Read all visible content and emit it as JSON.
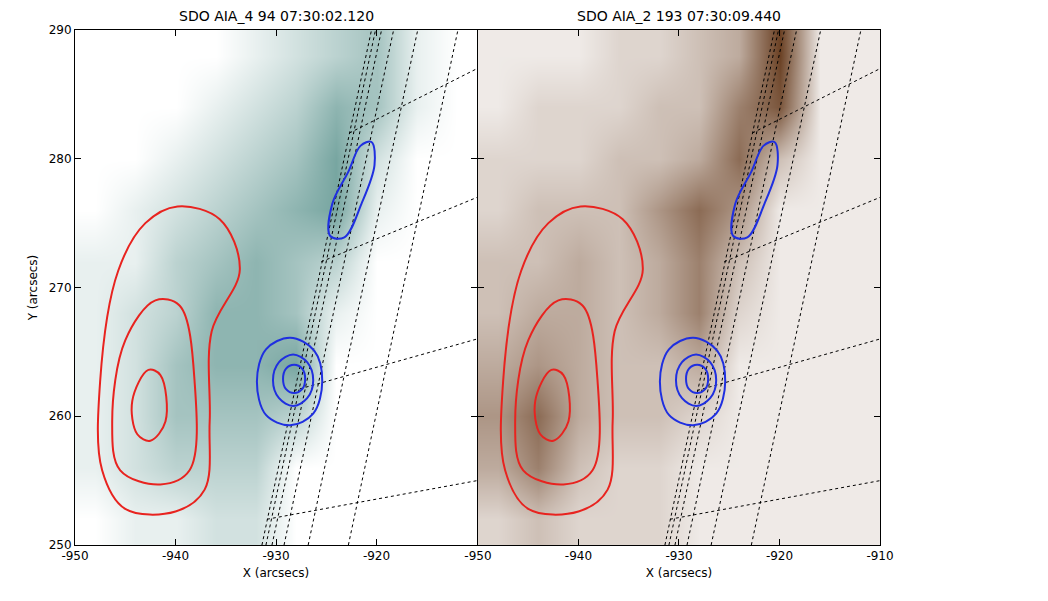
{
  "chart_data": [
    {
      "type": "heatmap",
      "title": "SDO AIA_4 94 07:30:02.120",
      "x_label": "X (arcsecs)",
      "y_label": "Y (arcsecs)",
      "color": "#1d6a62",
      "xlim": [
        -950,
        -910
      ],
      "ylim": [
        250,
        290
      ],
      "xticks": [
        -950,
        -940,
        -930,
        -920
      ],
      "yticks": [
        250,
        260,
        270,
        280,
        290
      ],
      "image": {
        "x": [
          -948,
          -944,
          -940,
          -936,
          -932,
          -928,
          -924,
          -920,
          -916,
          -912
        ],
        "y": [
          252,
          256,
          260,
          264,
          268,
          272,
          276,
          280,
          284,
          288
        ],
        "z": [
          [
            0,
            1,
            1,
            2,
            2,
            0,
            0,
            0,
            0,
            0
          ],
          [
            1,
            2,
            3,
            3,
            3,
            0,
            0,
            0,
            0,
            0
          ],
          [
            1,
            2,
            4,
            4,
            4,
            3,
            0,
            0,
            0,
            0
          ],
          [
            1,
            2,
            4,
            5,
            5,
            6,
            0,
            0,
            0,
            0
          ],
          [
            1,
            2,
            3,
            5,
            5,
            4,
            1,
            0,
            0,
            0
          ],
          [
            1,
            1,
            3,
            4,
            5,
            4,
            3,
            0,
            0,
            0
          ],
          [
            0,
            1,
            2,
            3,
            4,
            5,
            6,
            1,
            0,
            0
          ],
          [
            0,
            0,
            1,
            2,
            3,
            4,
            6,
            2,
            0,
            0
          ],
          [
            0,
            0,
            0,
            1,
            2,
            3,
            5,
            4,
            1,
            0
          ],
          [
            0,
            0,
            0,
            0,
            1,
            2,
            3,
            4,
            1,
            0
          ]
        ],
        "zlim": [
          0,
          10
        ]
      },
      "contours": [
        {
          "color": "#e8231f",
          "x": [
            -939.8,
            -935.6,
            -933.6,
            -936.4,
            -936.6,
            -937.1,
            -940.0,
            -945.0,
            -947.3,
            -947.5,
            -945.7,
            -943.0,
            -939.8
          ],
          "y": [
            276.3,
            275.3,
            271.4,
            266.6,
            259.6,
            254.3,
            252.6,
            252.8,
            255.8,
            262.7,
            271.3,
            275.0,
            276.3
          ]
        },
        {
          "color": "#e8231f",
          "x": [
            -942.0,
            -939.6,
            -938.1,
            -938.6,
            -941.5,
            -945.5,
            -946.3,
            -945.0,
            -942.0
          ],
          "y": [
            269.0,
            268.6,
            262.7,
            255.8,
            254.7,
            255.8,
            259.6,
            265.9,
            269.0
          ]
        },
        {
          "color": "#e8231f",
          "x": [
            -942.7,
            -941.5,
            -941.0,
            -942.5,
            -943.8,
            -944.3,
            -942.7
          ],
          "y": [
            263.6,
            263.2,
            259.6,
            258.1,
            258.6,
            261.2,
            263.6
          ]
        },
        {
          "color": "#1f2fe0",
          "x": [
            -928.6,
            -926.2,
            -925.4,
            -926.3,
            -928.6,
            -931.0,
            -931.9,
            -931.0,
            -928.6
          ],
          "y": [
            266.1,
            265.1,
            262.7,
            260.2,
            259.3,
            260.1,
            262.7,
            265.2,
            266.1
          ]
        },
        {
          "color": "#1f2fe0",
          "x": [
            -928.3,
            -926.9,
            -926.3,
            -926.9,
            -928.3,
            -929.7,
            -930.3,
            -929.7,
            -928.3
          ],
          "y": [
            264.8,
            264.2,
            262.8,
            261.4,
            260.8,
            261.4,
            262.8,
            264.2,
            264.8
          ]
        },
        {
          "color": "#1f2fe0",
          "x": [
            -928.2,
            -927.4,
            -927.1,
            -927.4,
            -928.2,
            -929.0,
            -929.3,
            -929.0,
            -928.2
          ],
          "y": [
            264.0,
            263.7,
            262.9,
            262.1,
            261.8,
            262.1,
            262.9,
            263.7,
            264.0
          ]
        },
        {
          "color": "#1f2fe0",
          "x": [
            -924.6,
            -923.2,
            -921.5,
            -920.2,
            -920.5,
            -921.6,
            -922.8,
            -924.4,
            -924.6
          ],
          "y": [
            274.0,
            273.9,
            276.5,
            279.5,
            281.3,
            281.0,
            279.0,
            276.5,
            274.0
          ]
        }
      ],
      "grid_lines": {
        "line_style": "dotted",
        "color": "#000000",
        "lines": [
          {
            "x": [
              -931.4,
              -920.5
            ],
            "y": [
              250,
              290
            ]
          },
          {
            "x": [
              -931.0,
              -920.1
            ],
            "y": [
              250,
              290
            ]
          },
          {
            "x": [
              -930.4,
              -919.5
            ],
            "y": [
              250,
              290
            ]
          },
          {
            "x": [
              -929.2,
              -918.3
            ],
            "y": [
              250,
              290
            ]
          },
          {
            "x": [
              -926.8,
              -915.9
            ],
            "y": [
              250,
              290
            ]
          },
          {
            "x": [
              -922.8,
              -911.9
            ],
            "y": [
              250,
              290
            ]
          },
          {
            "x": [
              -930.9,
              -910
            ],
            "y": [
              252,
              255
            ]
          },
          {
            "x": [
              -928.2,
              -910
            ],
            "y": [
              262,
              266
            ]
          },
          {
            "x": [
              -925.5,
              -910
            ],
            "y": [
              272,
              277
            ]
          },
          {
            "x": [
              -922.7,
              -910
            ],
            "y": [
              282,
              287
            ]
          }
        ]
      }
    },
    {
      "type": "heatmap",
      "title": "SDO AIA_2 193 07:30:09.440",
      "x_label": "X (arcsecs)",
      "color": "#5a2c0c",
      "xlim": [
        -950,
        -910
      ],
      "ylim": [
        250,
        290
      ],
      "xticks": [
        -950,
        -940,
        -930,
        -920,
        -910
      ],
      "yticks": [
        250,
        260,
        270,
        280,
        290
      ],
      "tick_labels": "x",
      "image": {
        "x": [
          -948,
          -944,
          -940,
          -936,
          -932,
          -928,
          -924,
          -920,
          -916,
          -912
        ],
        "y": [
          252,
          256,
          260,
          264,
          268,
          272,
          276,
          280,
          284,
          288
        ],
        "z": [
          [
            2,
            3,
            2,
            2,
            2,
            1,
            1,
            1,
            1,
            1
          ],
          [
            4,
            6,
            3,
            2,
            2,
            1,
            1,
            1,
            1,
            1
          ],
          [
            5,
            7,
            4,
            3,
            3,
            2,
            1,
            1,
            1,
            1
          ],
          [
            4,
            5,
            4,
            3,
            3,
            4,
            1,
            1,
            1,
            1
          ],
          [
            3,
            4,
            4,
            3,
            4,
            6,
            2,
            1,
            1,
            1
          ],
          [
            3,
            3,
            4,
            3,
            4,
            6,
            3,
            1,
            1,
            1
          ],
          [
            2,
            3,
            3,
            3,
            5,
            7,
            5,
            1,
            1,
            1
          ],
          [
            2,
            2,
            2,
            3,
            3,
            4,
            7,
            3,
            1,
            1
          ],
          [
            1,
            2,
            2,
            2,
            3,
            3,
            6,
            8,
            1,
            1
          ],
          [
            1,
            1,
            1,
            2,
            2,
            3,
            4,
            9,
            1,
            1
          ]
        ],
        "zlim": [
          0,
          10
        ]
      },
      "contours": [
        {
          "color": "#e8231f",
          "x": [
            -939.8,
            -935.6,
            -933.6,
            -936.4,
            -936.6,
            -937.1,
            -940.0,
            -945.0,
            -947.3,
            -947.5,
            -945.7,
            -943.0,
            -939.8
          ],
          "y": [
            276.3,
            275.3,
            271.4,
            266.6,
            259.6,
            254.3,
            252.6,
            252.8,
            255.8,
            262.7,
            271.3,
            275.0,
            276.3
          ]
        },
        {
          "color": "#e8231f",
          "x": [
            -942.0,
            -939.6,
            -938.1,
            -938.6,
            -941.5,
            -945.5,
            -946.3,
            -945.0,
            -942.0
          ],
          "y": [
            269.0,
            268.6,
            262.7,
            255.8,
            254.7,
            255.8,
            259.6,
            265.9,
            269.0
          ]
        },
        {
          "color": "#e8231f",
          "x": [
            -942.7,
            -941.5,
            -941.0,
            -942.5,
            -943.8,
            -944.3,
            -942.7
          ],
          "y": [
            263.6,
            263.2,
            259.6,
            258.1,
            258.6,
            261.2,
            263.6
          ]
        },
        {
          "color": "#1f2fe0",
          "x": [
            -928.6,
            -926.2,
            -925.4,
            -926.3,
            -928.6,
            -931.0,
            -931.9,
            -931.0,
            -928.6
          ],
          "y": [
            266.1,
            265.1,
            262.7,
            260.2,
            259.3,
            260.1,
            262.7,
            265.2,
            266.1
          ]
        },
        {
          "color": "#1f2fe0",
          "x": [
            -928.3,
            -926.9,
            -926.3,
            -926.9,
            -928.3,
            -929.7,
            -930.3,
            -929.7,
            -928.3
          ],
          "y": [
            264.8,
            264.2,
            262.8,
            261.4,
            260.8,
            261.4,
            262.8,
            264.2,
            264.8
          ]
        },
        {
          "color": "#1f2fe0",
          "x": [
            -928.2,
            -927.4,
            -927.1,
            -927.4,
            -928.2,
            -929.0,
            -929.3,
            -929.0,
            -928.2
          ],
          "y": [
            264.0,
            263.7,
            262.9,
            262.1,
            261.8,
            262.1,
            262.9,
            263.7,
            264.0
          ]
        },
        {
          "color": "#1f2fe0",
          "x": [
            -924.6,
            -923.2,
            -921.5,
            -920.2,
            -920.5,
            -921.6,
            -922.8,
            -924.4,
            -924.6
          ],
          "y": [
            274.0,
            273.9,
            276.5,
            279.5,
            281.3,
            281.0,
            279.0,
            276.5,
            274.0
          ]
        }
      ],
      "grid_lines": {
        "line_style": "dotted",
        "color": "#000000",
        "lines": [
          {
            "x": [
              -931.4,
              -920.5
            ],
            "y": [
              250,
              290
            ]
          },
          {
            "x": [
              -931.0,
              -920.1
            ],
            "y": [
              250,
              290
            ]
          },
          {
            "x": [
              -930.4,
              -919.5
            ],
            "y": [
              250,
              290
            ]
          },
          {
            "x": [
              -929.2,
              -918.3
            ],
            "y": [
              250,
              290
            ]
          },
          {
            "x": [
              -926.8,
              -915.9
            ],
            "y": [
              250,
              290
            ]
          },
          {
            "x": [
              -922.8,
              -911.9
            ],
            "y": [
              250,
              290
            ]
          },
          {
            "x": [
              -930.9,
              -910
            ],
            "y": [
              252,
              255
            ]
          },
          {
            "x": [
              -928.2,
              -910
            ],
            "y": [
              262,
              266
            ]
          },
          {
            "x": [
              -925.5,
              -910
            ],
            "y": [
              272,
              277
            ]
          },
          {
            "x": [
              -922.7,
              -910
            ],
            "y": [
              282,
              287
            ]
          }
        ]
      }
    }
  ]
}
